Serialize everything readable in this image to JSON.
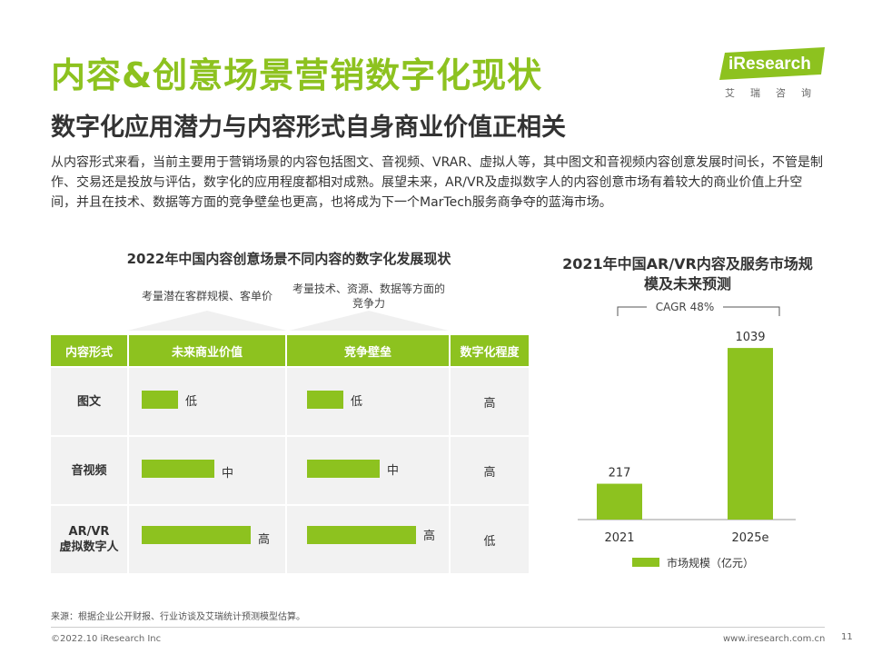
{
  "header": {
    "title": "内容&创意场景营销数字化现状",
    "subtitle": "数字化应用潜力与内容形式自身商业价值正相关"
  },
  "logo": {
    "brand": "iResearch",
    "cn": "艾瑞咨询"
  },
  "description": "从内容形式来看，当前主要用于营销场景的内容包括图文、音视频、VRAR、虚拟人等，其中图文和音视频内容创意发展时间长，不管是制作、交易还是投放与评估，数字化的应用程度都相对成熟。展望未来，AR/VR及虚拟数字人的内容创意市场有着较大的商业价值上升空间，并且在技术、数据等方面的竞争壁垒也更高，也将成为下一个MarTech服务商争夺的蓝海市场。",
  "table": {
    "title": "2022年中国内容创意场景不同内容的数字化发展现状",
    "callouts": [
      "考量潜在客群规模、客单价",
      "考量技术、资源、数据等方面的竞争力"
    ],
    "headers": [
      "内容形式",
      "未来商业价值",
      "竞争壁垒",
      "数字化程度"
    ],
    "rows": [
      {
        "form": "图文",
        "value": {
          "level": "低",
          "fraction": 0.33
        },
        "barrier": {
          "level": "低",
          "fraction": 0.33
        },
        "digital": "高"
      },
      {
        "form": "音视频",
        "value": {
          "level": "中",
          "fraction": 0.67
        },
        "barrier": {
          "level": "中",
          "fraction": 0.67
        },
        "digital": "高"
      },
      {
        "form": "AR/VR\n虚拟数字人",
        "value": {
          "level": "高",
          "fraction": 1.0
        },
        "barrier": {
          "level": "高",
          "fraction": 1.0
        },
        "digital": "低"
      }
    ]
  },
  "chart_data": {
    "type": "bar",
    "title": "2021年中国AR/VR内容及服务市场规模及未来预测",
    "categories": [
      "2021",
      "2025e"
    ],
    "series": [
      {
        "name": "市场规模（亿元）",
        "values": [
          217,
          1039
        ]
      }
    ],
    "annotation": "CAGR 48%",
    "ylim": [
      0,
      1100
    ],
    "color": "#8dc21f",
    "legend": "bottom"
  },
  "footer": {
    "source": "来源：根据企业公开财报、行业访谈及艾瑞统计预测模型估算。",
    "copyright": "©2022.10 iResearch Inc",
    "website": "www.iresearch.com.cn",
    "page": "11"
  },
  "colors": {
    "accent": "#8dc21f",
    "cell_bg": "#f2f2f2",
    "text": "#333333"
  }
}
